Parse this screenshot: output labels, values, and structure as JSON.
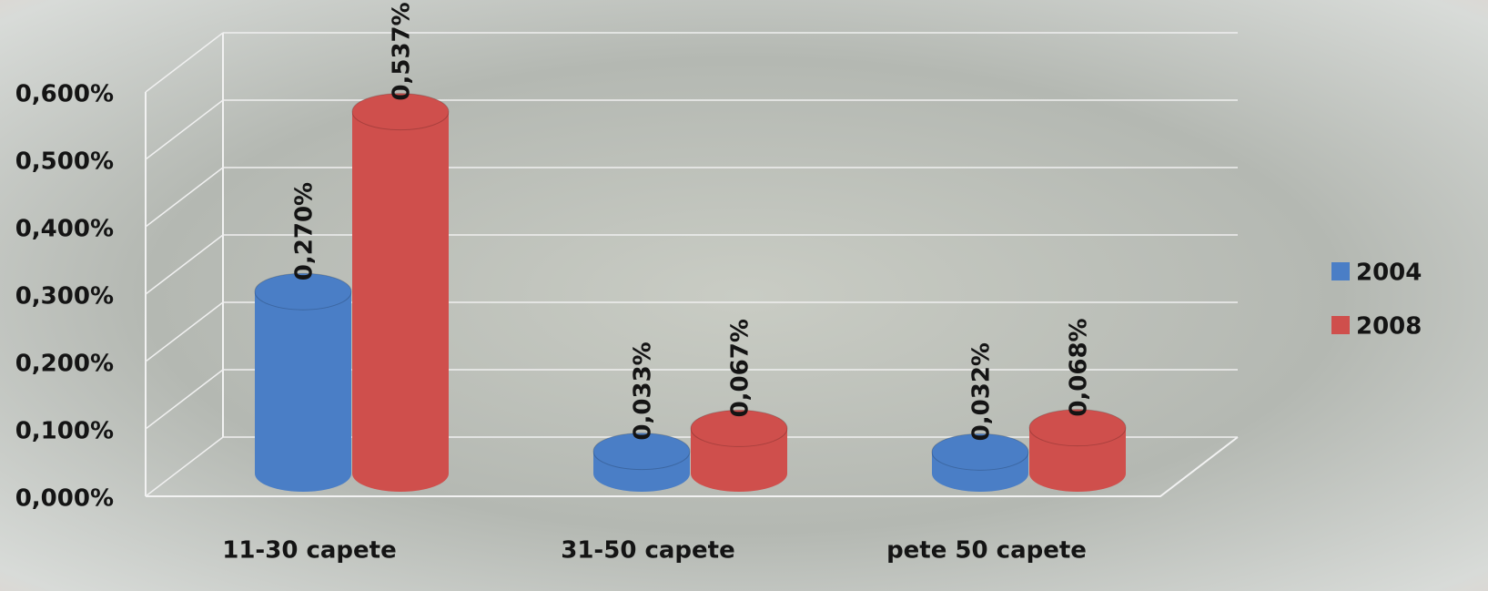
{
  "chart_data": {
    "type": "bar",
    "categories": [
      "11-30 capete",
      "31-50 capete",
      "pete 50 capete"
    ],
    "series": [
      {
        "name": "2004",
        "color": "#4a7ec6",
        "values": [
          0.27,
          0.033,
          0.032
        ],
        "value_labels": [
          "0,270%",
          "0,033%",
          "0,032%"
        ]
      },
      {
        "name": "2008",
        "color": "#cf4f4c",
        "values": [
          0.537,
          0.067,
          0.068
        ],
        "value_labels": [
          "0,537%",
          "0,067%",
          "0,068%"
        ]
      }
    ],
    "ylim": [
      0,
      0.6
    ],
    "yticks": [
      {
        "value": 0,
        "label": "0,000%"
      },
      {
        "value": 0.1,
        "label": "0,100%"
      },
      {
        "value": 0.2,
        "label": "0,200%"
      },
      {
        "value": 0.3,
        "label": "0,300%"
      },
      {
        "value": 0.4,
        "label": "0,400%"
      },
      {
        "value": 0.5,
        "label": "0,500%"
      },
      {
        "value": 0.6,
        "label": "0,600%"
      }
    ],
    "grid": true,
    "legend": "right"
  }
}
